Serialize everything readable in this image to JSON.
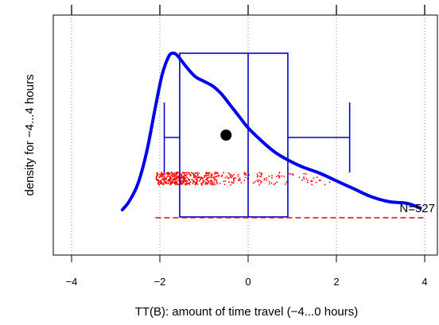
{
  "chart_data": {
    "type": "density-boxplot",
    "xlabel": "TT(B): amount of time travel (−4...0 hours)",
    "ylabel": "density for −4...4 hours",
    "xlim": [
      -4.4,
      4.3
    ],
    "x_ticks": [
      -4,
      -2,
      0,
      2,
      4
    ],
    "x_tick_labels": [
      "−4",
      "−2",
      "0",
      "2",
      "4"
    ],
    "top_ticks": [
      -4,
      -2,
      0,
      2,
      4
    ],
    "grid": "vertical dotted lines at x ticks",
    "annotation": "N=527",
    "n": 527,
    "colors": {
      "density": "#0000ee",
      "box": "#0000cc",
      "points": "#ff0000",
      "mean": "#000000"
    },
    "density_curve": {
      "x": [
        -2.85,
        -2.7,
        -2.5,
        -2.3,
        -2.1,
        -1.95,
        -1.8,
        -1.7,
        -1.6,
        -1.4,
        -1.2,
        -1.0,
        -0.8,
        -0.6,
        -0.4,
        -0.2,
        0.0,
        0.3,
        0.6,
        0.9,
        1.2,
        1.6,
        2.0,
        2.4,
        2.8,
        3.2,
        3.6,
        3.9
      ],
      "y": [
        0.02,
        0.07,
        0.18,
        0.38,
        0.66,
        0.86,
        0.975,
        0.995,
        0.98,
        0.91,
        0.85,
        0.82,
        0.79,
        0.74,
        0.67,
        0.6,
        0.53,
        0.45,
        0.38,
        0.33,
        0.29,
        0.25,
        0.2,
        0.15,
        0.1,
        0.07,
        0.06,
        0.03
      ]
    },
    "boxplot": {
      "whisker_low": -1.9,
      "q1": -1.55,
      "median": 0.0,
      "q3": 0.9,
      "whisker_high": 2.3,
      "mean": -0.5
    },
    "points_range": [
      -2.1,
      4.0
    ],
    "range_line": [
      -2.1,
      4.0
    ]
  }
}
